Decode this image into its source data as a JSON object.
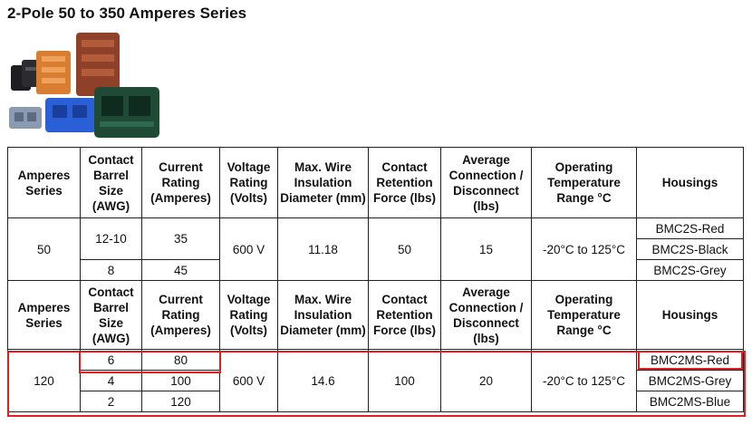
{
  "title": "2-Pole 50 to 350 Amperes Series",
  "headers": [
    "Amperes Series",
    "Contact Barrel Size (AWG)",
    "Current Rating (Amperes)",
    "Voltage Rating (Volts)",
    "Max. Wire Insulation Diameter (mm)",
    "Contact Retention Force (lbs)",
    "Average Connection / Disconnect (lbs)",
    "Operating Temperature Range °C",
    "Housings"
  ],
  "group1": {
    "series": "50",
    "barrel": [
      "12-10",
      "8"
    ],
    "current": [
      "35",
      "45"
    ],
    "voltage": "600 V",
    "wire": "11.18",
    "retention": "50",
    "connection": "15",
    "temperature": "-20°C to 125°C",
    "housings": [
      "BMC2S-Red",
      "BMC2S-Black",
      "BMC2S-Grey"
    ]
  },
  "group2": {
    "series": "120",
    "barrel": [
      "6",
      "4",
      "2"
    ],
    "current": [
      "80",
      "100",
      "120"
    ],
    "voltage": "600 V",
    "wire": "14.6",
    "retention": "100",
    "connection": "20",
    "temperature": "-20°C to 125°C",
    "housings": [
      "BMC2MS-Red",
      "BMC2MS-Grey",
      "BMC2MS-Blue"
    ]
  },
  "colors": {
    "highlight": "#e02020",
    "connector_orange": "#e08a3c",
    "connector_brown": "#9b4a2e",
    "connector_blue": "#2a5fd6",
    "connector_green": "#1f4a36",
    "connector_grey": "#8a9ab0",
    "connector_black": "#1e1e22"
  }
}
